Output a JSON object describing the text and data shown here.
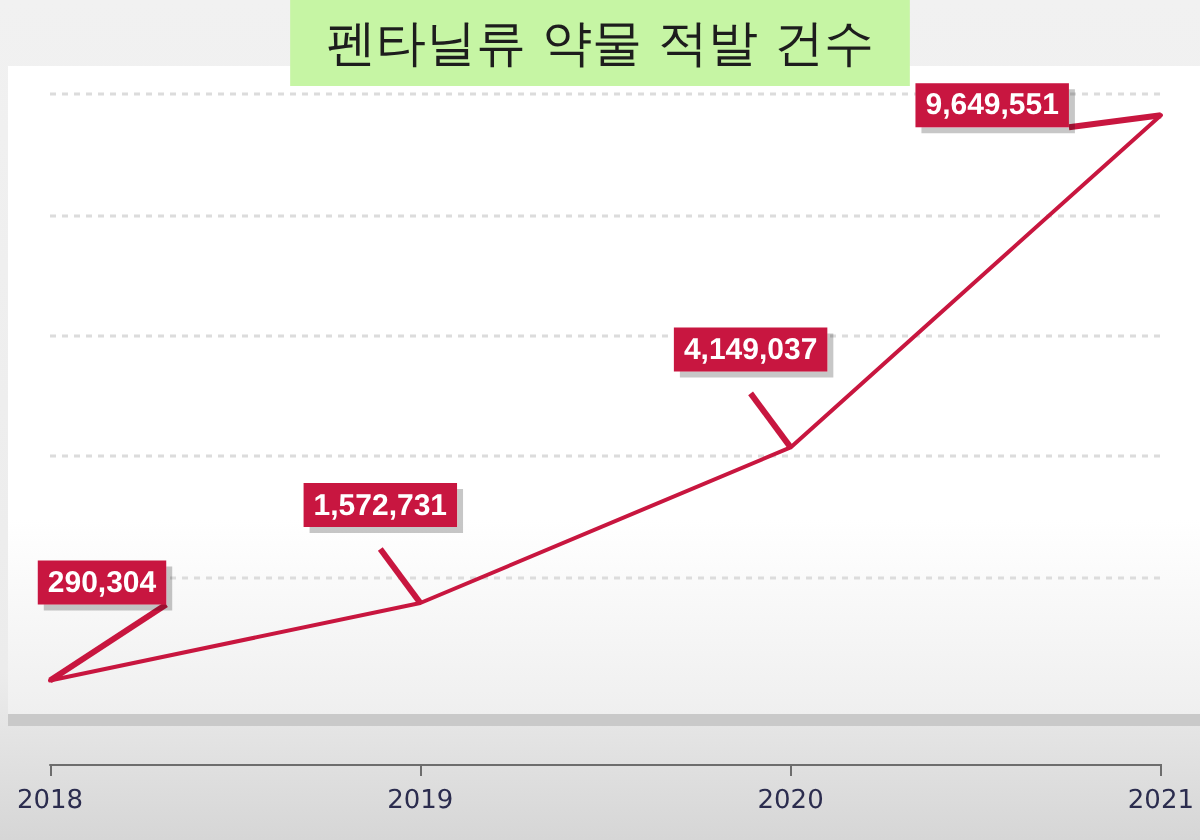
{
  "chart_data": {
    "type": "line",
    "title": "펜타닐류 약물 적발 건수",
    "categories": [
      "2018",
      "2019",
      "2020",
      "2021"
    ],
    "series": [
      {
        "color": "#c8163f",
        "values": [
          290304,
          1572731,
          4149037,
          9649551
        ],
        "value_labels": [
          "290,304",
          "1,572,731",
          "4,149,037",
          "9,649,551"
        ]
      }
    ],
    "grid": "y",
    "tick_labels": "x",
    "marker": "none",
    "line_style": "solid"
  }
}
